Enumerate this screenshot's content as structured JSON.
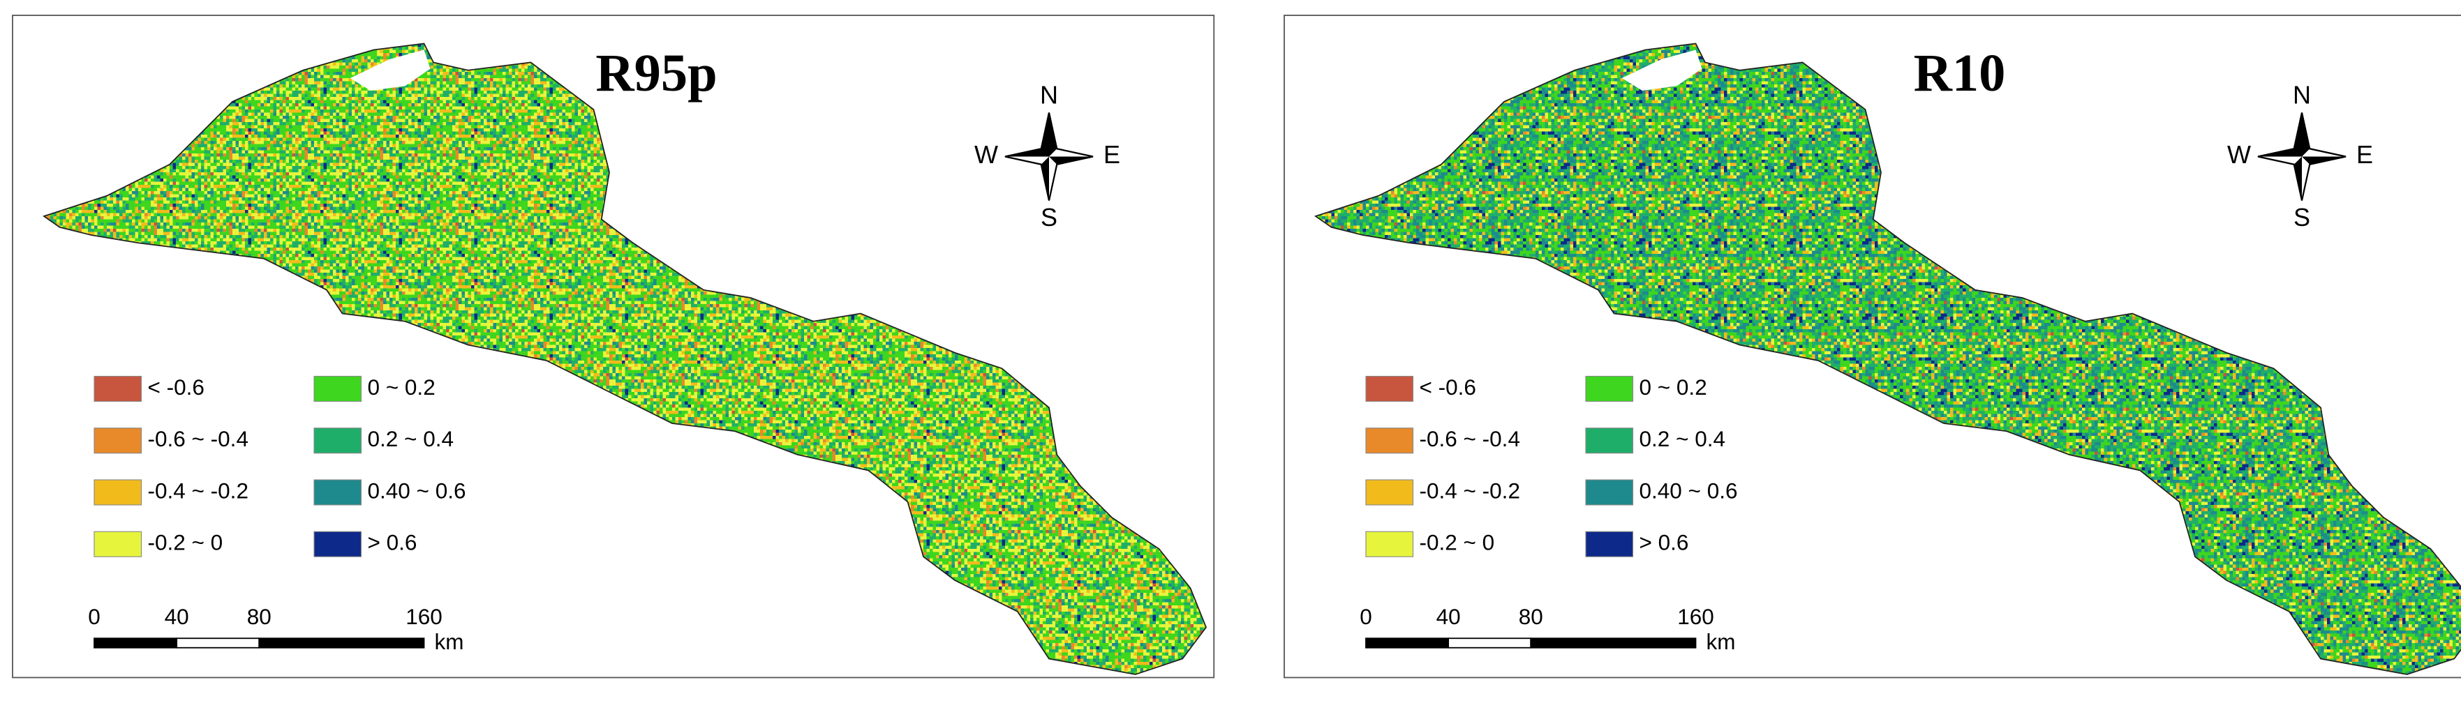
{
  "panels": [
    {
      "title": "R95p",
      "compass": {
        "n": "N",
        "s": "S",
        "w": "W",
        "e": "E"
      },
      "legend": [
        {
          "label": "< -0.6",
          "color": "#c8553d"
        },
        {
          "label": "-0.6 ~ -0.4",
          "color": "#e8892a"
        },
        {
          "label": "-0.4 ~ -0.2",
          "color": "#f2bb1c"
        },
        {
          "label": "-0.2 ~ 0",
          "color": "#e6f53c"
        },
        {
          "label": "0 ~ 0.2",
          "color": "#3ed61e"
        },
        {
          "label": "0.2 ~ 0.4",
          "color": "#1fae6a"
        },
        {
          "label": "0.40 ~ 0.6",
          "color": "#1e8a8e"
        },
        {
          "label": "> 0.6",
          "color": "#0d2a8a"
        }
      ],
      "scale_bar": {
        "ticks": [
          0,
          40,
          80,
          160
        ],
        "unit": "km"
      }
    },
    {
      "title": "R10",
      "compass": {
        "n": "N",
        "s": "S",
        "w": "W",
        "e": "E"
      },
      "legend": [
        {
          "label": "< -0.6",
          "color": "#c8553d"
        },
        {
          "label": "-0.6 ~ -0.4",
          "color": "#e8892a"
        },
        {
          "label": "-0.4 ~ -0.2",
          "color": "#f2bb1c"
        },
        {
          "label": "-0.2 ~ 0",
          "color": "#e6f53c"
        },
        {
          "label": "0 ~ 0.2",
          "color": "#3ed61e"
        },
        {
          "label": "0.2 ~ 0.4",
          "color": "#1fae6a"
        },
        {
          "label": "0.40 ~ 0.6",
          "color": "#1e8a8e"
        },
        {
          "label": "> 0.6",
          "color": "#0d2a8a"
        }
      ],
      "scale_bar": {
        "ticks": [
          0,
          40,
          80,
          160
        ],
        "unit": "km"
      }
    }
  ]
}
